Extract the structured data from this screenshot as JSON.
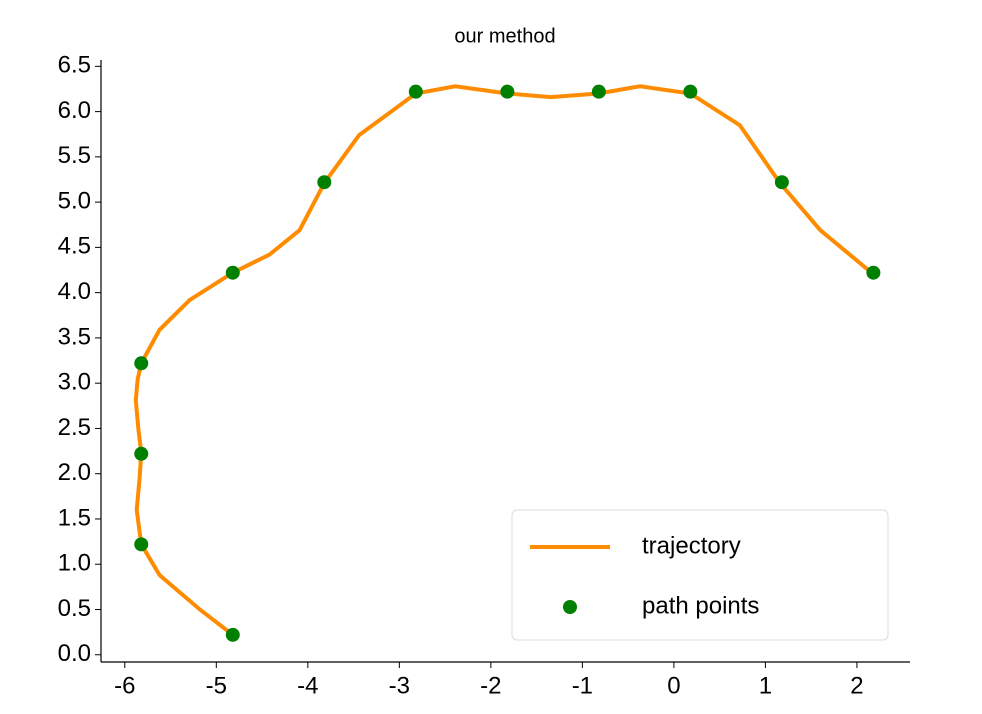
{
  "chart_data": {
    "type": "line",
    "title": "our method",
    "series": [
      {
        "name": "trajectory",
        "type": "line",
        "color": "#ff8c00",
        "x": [
          -4.82,
          -5.18,
          -5.62,
          -5.82,
          -5.87,
          -5.84,
          -5.82,
          -5.85,
          -5.88,
          -5.86,
          -5.82,
          -5.62,
          -5.29,
          -4.82,
          -4.42,
          -4.09,
          -3.82,
          -3.44,
          -2.82,
          -2.39,
          -1.82,
          -1.35,
          -0.82,
          -0.37,
          0.18,
          0.72,
          1.16,
          1.6,
          2.16
        ],
        "values": [
          0.22,
          0.5,
          0.88,
          1.22,
          1.6,
          1.93,
          2.23,
          2.48,
          2.81,
          3.04,
          3.22,
          3.59,
          3.92,
          4.22,
          4.42,
          4.69,
          5.21,
          5.74,
          6.2,
          6.28,
          6.2,
          6.16,
          6.2,
          6.28,
          6.2,
          5.85,
          5.21,
          4.69,
          4.22
        ]
      },
      {
        "name": "path points",
        "type": "scatter",
        "color": "#008000",
        "x": [
          -4.82,
          -5.82,
          -5.82,
          -5.82,
          -4.82,
          -3.82,
          -2.82,
          -1.82,
          -0.82,
          0.18,
          1.18,
          2.18
        ],
        "values": [
          0.22,
          1.22,
          2.22,
          3.22,
          4.22,
          5.22,
          6.22,
          6.22,
          6.22,
          6.22,
          5.22,
          4.22
        ]
      }
    ],
    "xlim": [
      -6.26,
      2.58
    ],
    "ylim": [
      -0.08,
      6.57
    ],
    "xticks": [
      -6,
      -5,
      -4,
      -3,
      -2,
      -1,
      0,
      1,
      2
    ],
    "yticks": [
      {
        "value": 0,
        "label": "0.0"
      },
      {
        "value": 0.5,
        "label": "0.5"
      },
      {
        "value": 1,
        "label": "1.0"
      },
      {
        "value": 1.5,
        "label": "1.5"
      },
      {
        "value": 2,
        "label": "2.0"
      },
      {
        "value": 2.5,
        "label": "2.5"
      },
      {
        "value": 3,
        "label": "3.0"
      },
      {
        "value": 3.5,
        "label": "3.5"
      },
      {
        "value": 4,
        "label": "4.0"
      },
      {
        "value": 4.5,
        "label": "4.5"
      },
      {
        "value": 5,
        "label": "5.0"
      },
      {
        "value": 5.5,
        "label": "5.5"
      },
      {
        "value": 6,
        "label": "6.0"
      },
      {
        "value": 6.5,
        "label": "6.5"
      }
    ],
    "legend": "lower right"
  }
}
